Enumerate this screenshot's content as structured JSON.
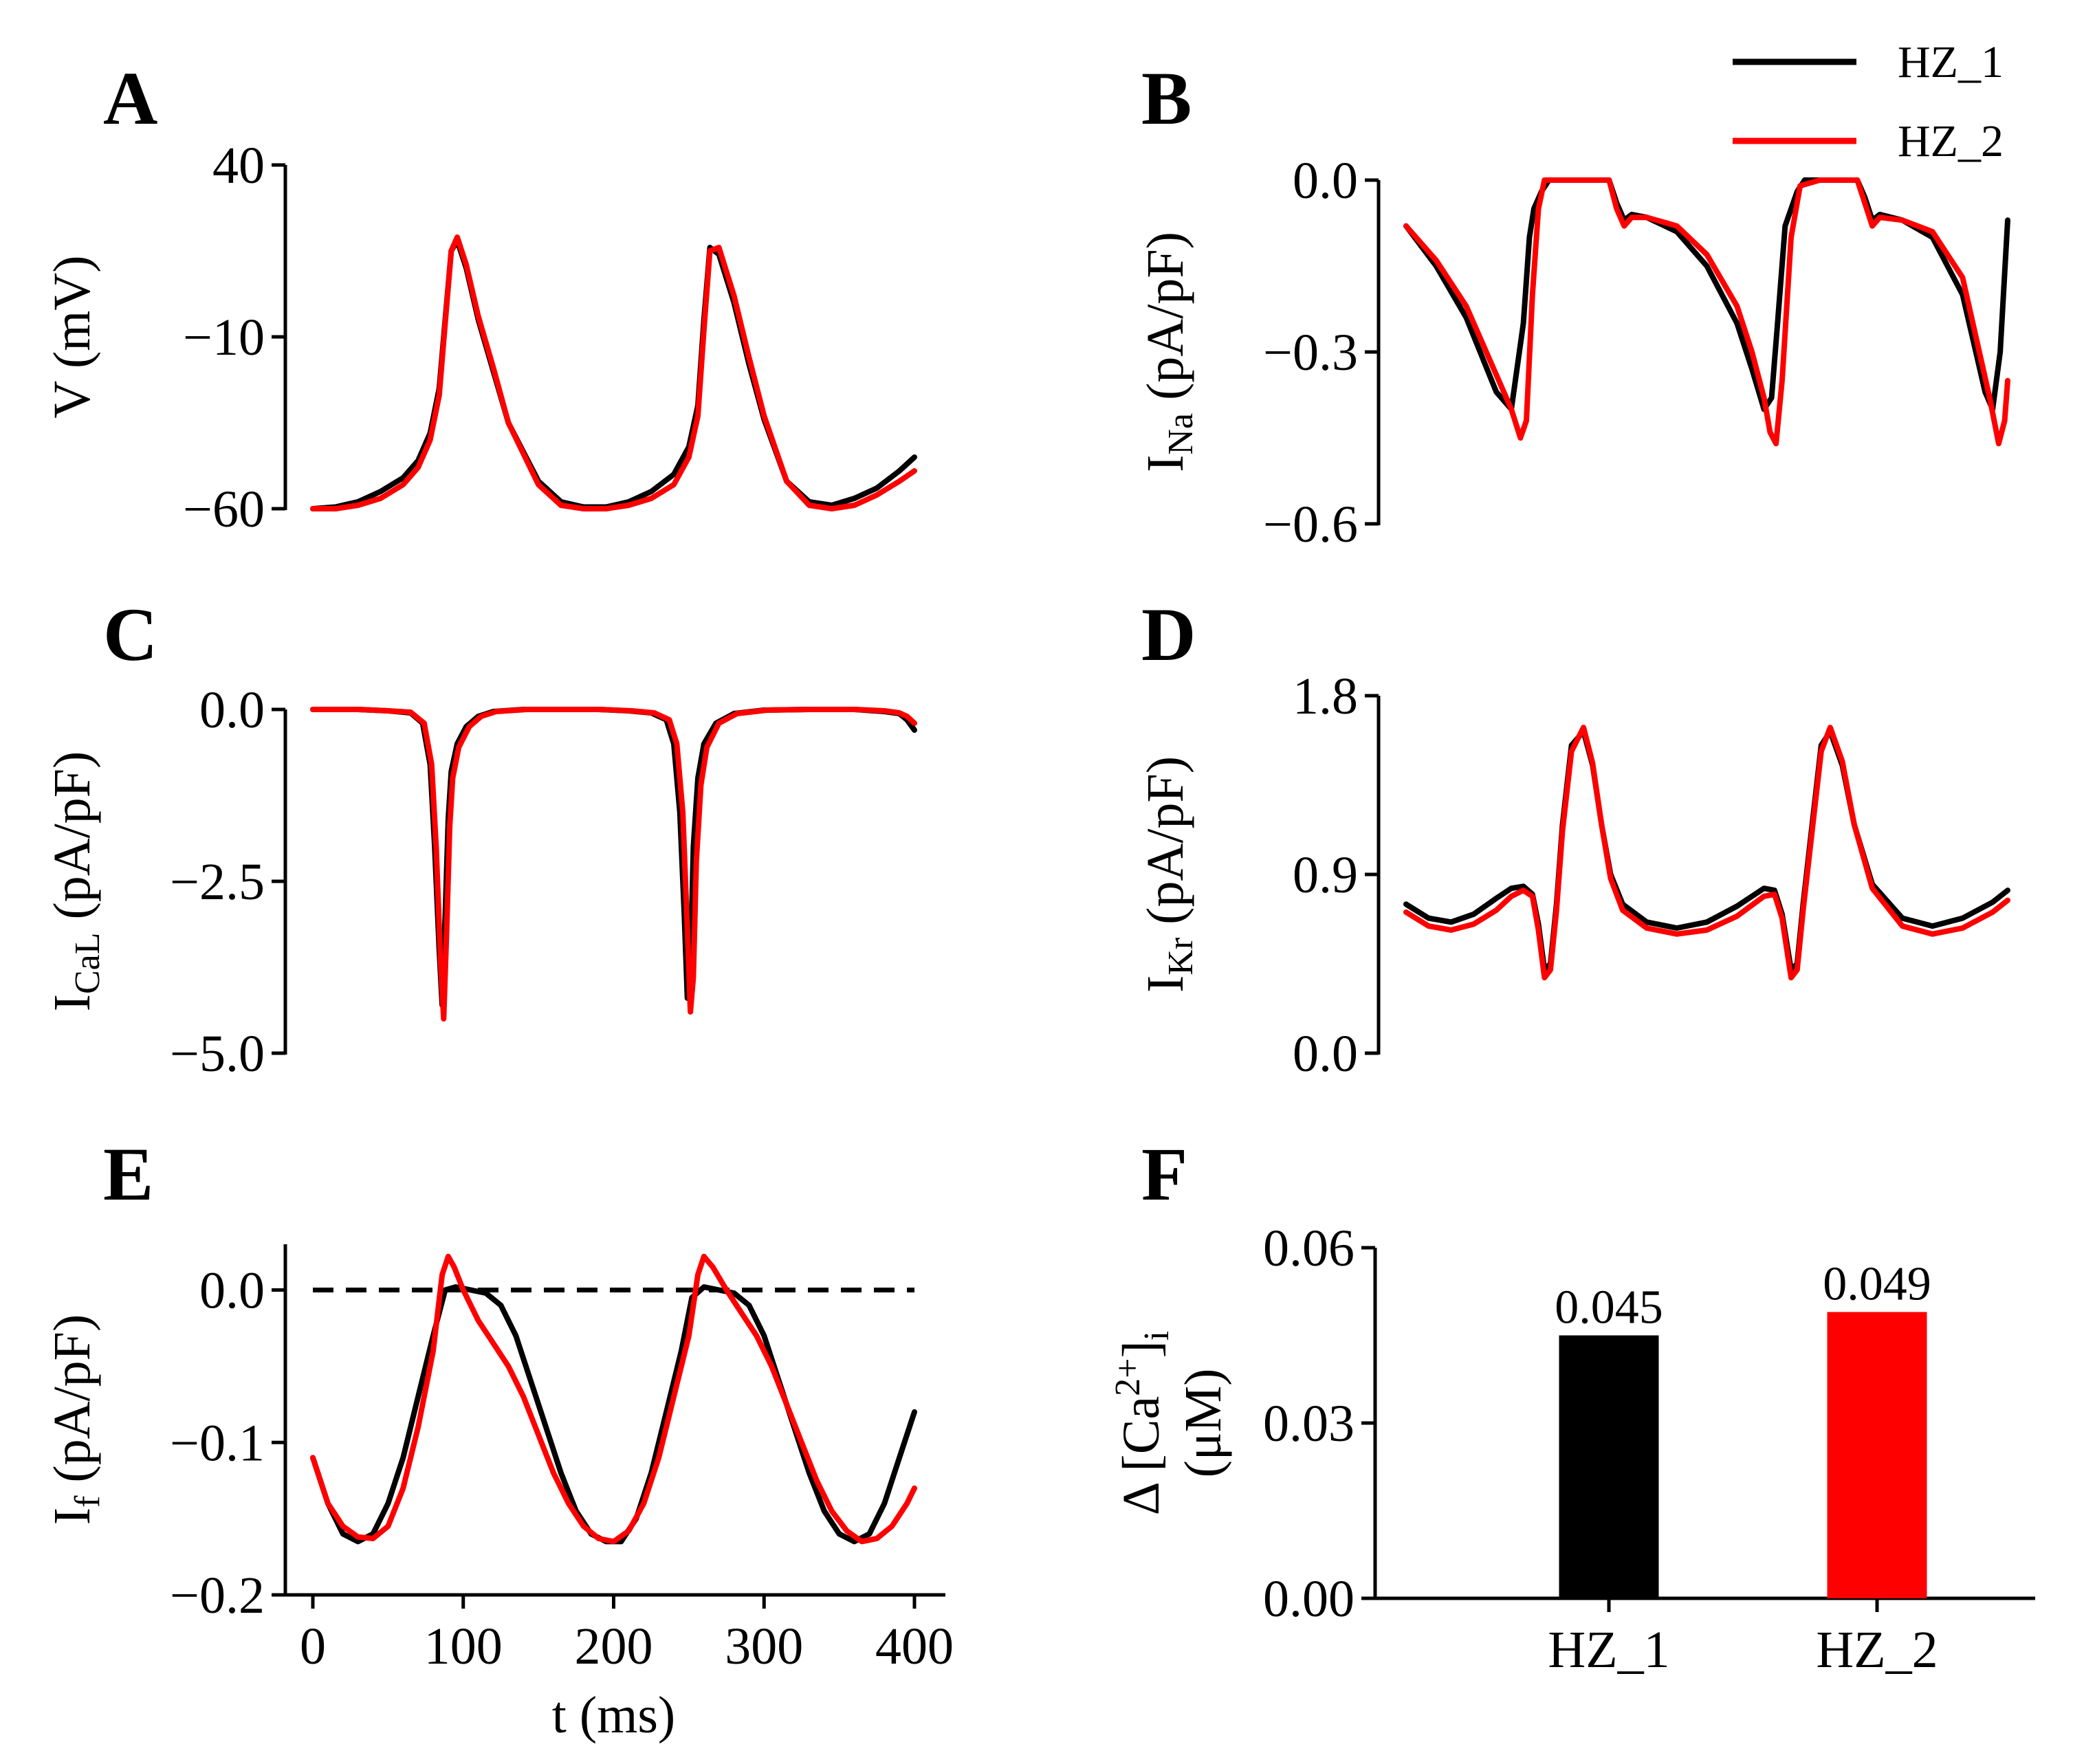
{
  "legend": {
    "entries": [
      {
        "label": "HZ_1",
        "color": "#000000"
      },
      {
        "label": "HZ_2",
        "color": "#ff0000"
      }
    ]
  },
  "colors": {
    "HZ_1": "#000000",
    "HZ_2": "#ff0000",
    "zero_line": "#000000"
  },
  "chart_data": [
    {
      "id": "A",
      "type": "line",
      "ylabel": "V (mV)",
      "xlim": [
        0,
        400
      ],
      "ylim": [
        -60,
        40
      ],
      "yticks": [
        40,
        -10,
        -60
      ],
      "ytick_labels": [
        "40",
        "−10",
        "−60"
      ],
      "xtick_labels": [],
      "series": [
        {
          "name": "HZ_1",
          "color": "#000000",
          "x": [
            0,
            15,
            30,
            45,
            60,
            70,
            78,
            84,
            88,
            92,
            96,
            102,
            110,
            120,
            130,
            150,
            165,
            180,
            195,
            210,
            225,
            240,
            250,
            256,
            260,
            264,
            270,
            280,
            290,
            300,
            315,
            330,
            345,
            360,
            375,
            390,
            400
          ],
          "y": [
            -60,
            -59.5,
            -58,
            -55,
            -51,
            -46,
            -38,
            -25,
            -5,
            15,
            18,
            10,
            -5,
            -20,
            -35,
            -52,
            -58,
            -59.5,
            -59.5,
            -58,
            -55,
            -50,
            -42,
            -30,
            -5,
            16,
            14,
            0,
            -18,
            -34,
            -52,
            -58,
            -59,
            -57,
            -54,
            -49,
            -45
          ]
        },
        {
          "name": "HZ_2",
          "color": "#ff0000",
          "x": [
            0,
            15,
            30,
            45,
            60,
            70,
            78,
            84,
            88,
            92,
            96,
            102,
            110,
            120,
            130,
            150,
            165,
            180,
            195,
            210,
            225,
            240,
            250,
            256,
            260,
            264,
            270,
            280,
            290,
            300,
            315,
            330,
            345,
            360,
            375,
            390,
            400
          ],
          "y": [
            -60,
            -60,
            -59,
            -57,
            -53,
            -48,
            -40,
            -27,
            -6,
            15,
            19,
            11,
            -4,
            -19,
            -35,
            -53,
            -59,
            -60,
            -60,
            -59,
            -57,
            -53,
            -45,
            -33,
            -8,
            15,
            16,
            2,
            -16,
            -33,
            -52,
            -59,
            -60,
            -59,
            -56,
            -52,
            -49
          ]
        }
      ]
    },
    {
      "id": "B",
      "type": "line",
      "ylabel": "I",
      "ylabel_sub": "Na",
      "ylabel_unit": " (pA/pF)",
      "xlim": [
        0,
        400
      ],
      "ylim": [
        -0.6,
        0.0
      ],
      "yticks": [
        0.0,
        -0.3,
        -0.6
      ],
      "ytick_labels": [
        "0.0",
        "−0.3",
        "−0.6"
      ],
      "xtick_labels": [],
      "series": [
        {
          "name": "HZ_1",
          "color": "#000000",
          "x": [
            0,
            20,
            40,
            60,
            70,
            78,
            82,
            85,
            90,
            95,
            100,
            110,
            120,
            135,
            140,
            145,
            150,
            160,
            180,
            200,
            220,
            230,
            238,
            243,
            247,
            252,
            260,
            265,
            275,
            285,
            300,
            305,
            310,
            315,
            330,
            350,
            370,
            385,
            390,
            395,
            400
          ],
          "y": [
            -0.08,
            -0.15,
            -0.24,
            -0.37,
            -0.4,
            -0.25,
            -0.1,
            -0.05,
            -0.02,
            0,
            0,
            0,
            0,
            0,
            -0.04,
            -0.07,
            -0.06,
            -0.065,
            -0.09,
            -0.15,
            -0.25,
            -0.33,
            -0.4,
            -0.38,
            -0.25,
            -0.08,
            -0.02,
            0,
            0,
            0,
            0,
            -0.03,
            -0.07,
            -0.06,
            -0.07,
            -0.1,
            -0.2,
            -0.37,
            -0.4,
            -0.3,
            -0.07
          ]
        },
        {
          "name": "HZ_2",
          "color": "#ff0000",
          "x": [
            0,
            20,
            40,
            60,
            70,
            76,
            80,
            84,
            88,
            92,
            98,
            105,
            120,
            135,
            140,
            145,
            150,
            160,
            180,
            200,
            220,
            230,
            238,
            242,
            246,
            250,
            256,
            262,
            275,
            285,
            300,
            305,
            310,
            315,
            330,
            350,
            370,
            388,
            394,
            398,
            400
          ],
          "y": [
            -0.08,
            -0.14,
            -0.22,
            -0.34,
            -0.4,
            -0.45,
            -0.42,
            -0.2,
            -0.05,
            0,
            0,
            0,
            0,
            0,
            -0.05,
            -0.08,
            -0.065,
            -0.065,
            -0.08,
            -0.13,
            -0.22,
            -0.3,
            -0.38,
            -0.44,
            -0.46,
            -0.35,
            -0.1,
            -0.01,
            0,
            0,
            0,
            -0.04,
            -0.08,
            -0.065,
            -0.07,
            -0.09,
            -0.17,
            -0.38,
            -0.46,
            -0.42,
            -0.35
          ]
        }
      ]
    },
    {
      "id": "C",
      "type": "line",
      "ylabel": "I",
      "ylabel_sub": "CaL",
      "ylabel_unit": " (pA/pF)",
      "xlim": [
        0,
        400
      ],
      "ylim": [
        -5.0,
        0.0
      ],
      "yticks": [
        0.0,
        -2.5,
        -5.0
      ],
      "ytick_labels": [
        "0.0",
        "−2.5",
        "−5.0"
      ],
      "xtick_labels": [],
      "series": [
        {
          "name": "HZ_1",
          "color": "#000000",
          "x": [
            0,
            30,
            50,
            65,
            73,
            78,
            81,
            84,
            86,
            88,
            90,
            92,
            96,
            102,
            110,
            120,
            140,
            160,
            190,
            210,
            225,
            235,
            240,
            244,
            247,
            249,
            251,
            253,
            256,
            260,
            268,
            280,
            300,
            330,
            360,
            380,
            390,
            395,
            400
          ],
          "y": [
            0,
            0,
            -0.02,
            -0.05,
            -0.2,
            -0.8,
            -2.0,
            -3.5,
            -4.3,
            -3.0,
            -1.6,
            -0.9,
            -0.5,
            -0.25,
            -0.1,
            -0.03,
            0,
            0,
            0,
            -0.02,
            -0.05,
            -0.15,
            -0.5,
            -1.5,
            -3.0,
            -4.2,
            -3.8,
            -2.0,
            -1.0,
            -0.5,
            -0.2,
            -0.06,
            -0.01,
            0,
            0,
            -0.03,
            -0.06,
            -0.15,
            -0.3
          ]
        },
        {
          "name": "HZ_2",
          "color": "#ff0000",
          "x": [
            0,
            30,
            50,
            65,
            74,
            79,
            82,
            85,
            87,
            89,
            91,
            93,
            97,
            104,
            112,
            122,
            142,
            162,
            190,
            212,
            227,
            237,
            242,
            246,
            249,
            251,
            253,
            255,
            258,
            262,
            270,
            282,
            302,
            330,
            360,
            380,
            390,
            395,
            400
          ],
          "y": [
            0,
            0,
            -0.02,
            -0.04,
            -0.2,
            -0.8,
            -2.0,
            -3.7,
            -4.5,
            -3.2,
            -1.7,
            -1.0,
            -0.55,
            -0.25,
            -0.1,
            -0.03,
            0,
            0,
            0,
            -0.02,
            -0.05,
            -0.15,
            -0.5,
            -1.5,
            -3.2,
            -4.4,
            -3.9,
            -2.2,
            -1.1,
            -0.55,
            -0.2,
            -0.06,
            -0.01,
            0,
            0,
            -0.02,
            -0.05,
            -0.1,
            -0.2
          ]
        }
      ]
    },
    {
      "id": "D",
      "type": "line",
      "ylabel": "I",
      "ylabel_sub": "Kr",
      "ylabel_unit": " (pA/pF)",
      "xlim": [
        0,
        400
      ],
      "ylim": [
        0.0,
        1.8
      ],
      "yticks": [
        1.8,
        0.9,
        0.0
      ],
      "ytick_labels": [
        "1.8",
        "0.9",
        "0.0"
      ],
      "xtick_labels": [],
      "series": [
        {
          "name": "HZ_1",
          "color": "#000000",
          "x": [
            0,
            15,
            30,
            45,
            60,
            70,
            78,
            84,
            88,
            92,
            96,
            100,
            104,
            110,
            118,
            124,
            130,
            136,
            144,
            160,
            180,
            200,
            220,
            238,
            245,
            250,
            256,
            260,
            264,
            270,
            276,
            282,
            290,
            298,
            310,
            330,
            350,
            370,
            390,
            400
          ],
          "y": [
            0.75,
            0.68,
            0.66,
            0.7,
            0.78,
            0.83,
            0.84,
            0.8,
            0.65,
            0.42,
            0.45,
            0.75,
            1.15,
            1.55,
            1.62,
            1.45,
            1.15,
            0.9,
            0.75,
            0.66,
            0.63,
            0.66,
            0.74,
            0.83,
            0.82,
            0.7,
            0.42,
            0.45,
            0.75,
            1.15,
            1.55,
            1.62,
            1.45,
            1.15,
            0.85,
            0.68,
            0.64,
            0.68,
            0.76,
            0.82
          ]
        },
        {
          "name": "HZ_2",
          "color": "#ff0000",
          "x": [
            0,
            15,
            30,
            45,
            60,
            70,
            78,
            84,
            88,
            92,
            96,
            100,
            104,
            110,
            118,
            124,
            130,
            136,
            144,
            160,
            180,
            200,
            220,
            238,
            245,
            250,
            256,
            260,
            264,
            270,
            276,
            282,
            290,
            298,
            310,
            330,
            350,
            370,
            390,
            400
          ],
          "y": [
            0.71,
            0.64,
            0.62,
            0.65,
            0.72,
            0.79,
            0.82,
            0.79,
            0.62,
            0.38,
            0.42,
            0.72,
            1.12,
            1.52,
            1.64,
            1.46,
            1.15,
            0.88,
            0.72,
            0.63,
            0.6,
            0.62,
            0.69,
            0.79,
            0.8,
            0.68,
            0.38,
            0.42,
            0.72,
            1.12,
            1.52,
            1.64,
            1.47,
            1.15,
            0.83,
            0.64,
            0.6,
            0.63,
            0.71,
            0.77
          ]
        }
      ]
    },
    {
      "id": "E",
      "type": "line",
      "ylabel": "I",
      "ylabel_sub": "f",
      "ylabel_unit": " (pA/pF)",
      "xlabel": "t (ms)",
      "xlim": [
        0,
        400
      ],
      "ylim": [
        -0.2,
        0.03
      ],
      "yticks": [
        0.0,
        -0.1,
        -0.2
      ],
      "ytick_labels": [
        "0.0",
        "−0.1",
        "−0.2"
      ],
      "xticks": [
        0,
        100,
        200,
        300,
        400
      ],
      "xtick_labels": [
        "0",
        "100",
        "200",
        "300",
        "400"
      ],
      "zero_line": true,
      "series": [
        {
          "name": "HZ_1",
          "color": "#000000",
          "x": [
            0,
            10,
            20,
            30,
            40,
            50,
            60,
            70,
            80,
            88,
            95,
            105,
            115,
            125,
            135,
            145,
            155,
            165,
            175,
            185,
            195,
            205,
            215,
            225,
            235,
            245,
            252,
            260,
            270,
            280,
            290,
            300,
            310,
            320,
            330,
            340,
            350,
            360,
            370,
            380,
            390,
            400
          ],
          "y": [
            -0.11,
            -0.14,
            -0.16,
            -0.165,
            -0.16,
            -0.14,
            -0.11,
            -0.07,
            -0.03,
            0.0,
            0.002,
            0.0,
            -0.002,
            -0.01,
            -0.03,
            -0.06,
            -0.09,
            -0.12,
            -0.145,
            -0.16,
            -0.165,
            -0.165,
            -0.15,
            -0.12,
            -0.08,
            -0.04,
            -0.005,
            0.002,
            0.0,
            -0.002,
            -0.01,
            -0.03,
            -0.06,
            -0.09,
            -0.12,
            -0.145,
            -0.16,
            -0.165,
            -0.16,
            -0.14,
            -0.11,
            -0.08
          ]
        },
        {
          "name": "HZ_2",
          "color": "#ff0000",
          "x": [
            0,
            10,
            20,
            30,
            40,
            50,
            60,
            70,
            80,
            86,
            90,
            94,
            100,
            110,
            120,
            130,
            140,
            150,
            160,
            170,
            180,
            190,
            200,
            210,
            220,
            230,
            240,
            250,
            256,
            260,
            266,
            275,
            285,
            295,
            305,
            315,
            325,
            335,
            345,
            355,
            365,
            375,
            385,
            395,
            400
          ],
          "y": [
            -0.11,
            -0.14,
            -0.155,
            -0.162,
            -0.163,
            -0.155,
            -0.13,
            -0.09,
            -0.04,
            0.01,
            0.022,
            0.015,
            0.0,
            -0.02,
            -0.035,
            -0.05,
            -0.07,
            -0.095,
            -0.12,
            -0.14,
            -0.155,
            -0.163,
            -0.165,
            -0.158,
            -0.14,
            -0.11,
            -0.07,
            -0.03,
            0.01,
            0.022,
            0.015,
            0.0,
            -0.015,
            -0.03,
            -0.05,
            -0.075,
            -0.1,
            -0.125,
            -0.145,
            -0.158,
            -0.165,
            -0.163,
            -0.155,
            -0.14,
            -0.13
          ]
        }
      ]
    },
    {
      "id": "F",
      "type": "bar",
      "ylabel_line1": "Δ [Ca",
      "ylabel_sup": "2+",
      "ylabel_close": "]",
      "ylabel_sub": "i",
      "ylabel_line2": "(μM)",
      "categories": [
        "HZ_1",
        "HZ_2"
      ],
      "values": [
        0.045,
        0.049
      ],
      "value_labels": [
        "0.045",
        "0.049"
      ],
      "colors": [
        "#000000",
        "#ff0000"
      ],
      "ylim": [
        0.0,
        0.06
      ],
      "yticks": [
        0.06,
        0.03,
        0.0
      ],
      "ytick_labels": [
        "0.06",
        "0.03",
        "0.00"
      ]
    }
  ]
}
